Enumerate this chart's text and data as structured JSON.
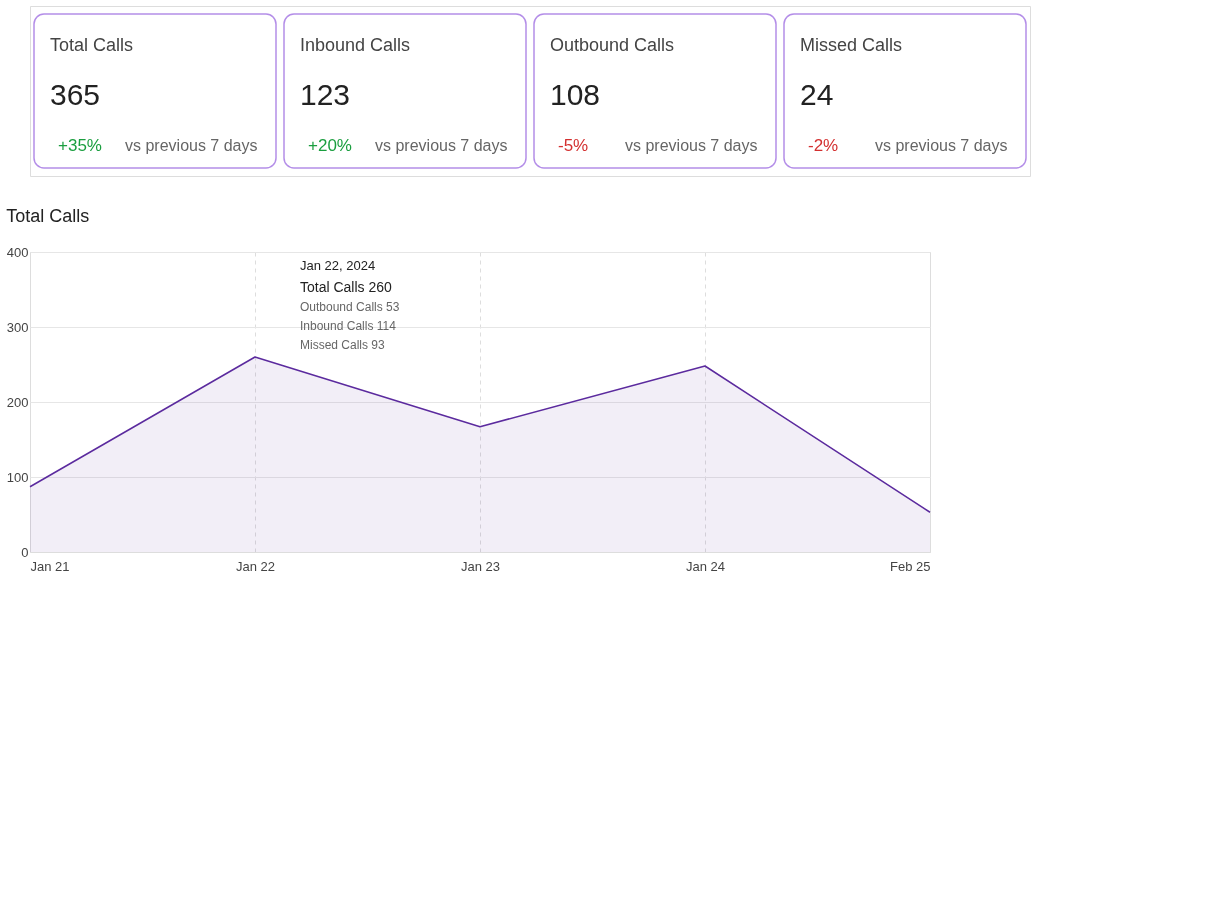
{
  "chart_data": [
    {
      "type": "other",
      "annotations": [
        "Total Calls",
        "365",
        "+35%",
        "vs previous 7 days",
        "Inbound Calls",
        "123",
        "+20%",
        "vs previous 7 days",
        "Outbound Calls",
        "108",
        "-5%",
        "vs previous 7 days",
        "Missed Calls",
        "24",
        "-2%",
        "vs previous 7 days"
      ],
      "colors": [
        "#1a9e3f",
        "#1a9e3f",
        "#d32f2f",
        "#d32f2f"
      ]
    },
    {
      "type": "area",
      "title": "Total Calls",
      "categories": [
        "Jan 21",
        "Jan 22",
        "Jan 23",
        "Jan 24",
        "Feb 25"
      ],
      "series": [
        {
          "color": "#5b2a9e",
          "values": [
            87,
            260,
            167,
            248,
            53
          ]
        }
      ],
      "ylim": [
        0,
        400
      ],
      "yticks": [
        0,
        100,
        200,
        300,
        400
      ],
      "grid": true,
      "annotations": [
        "Jan 22, 2024",
        "Total Calls 260",
        "Outbound Calls 53",
        "Inbound Calls 114",
        "Missed Calls 93"
      ]
    }
  ]
}
